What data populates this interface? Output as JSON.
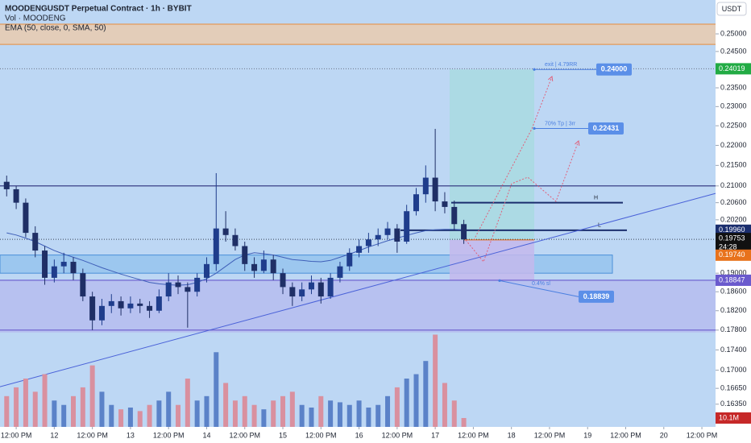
{
  "chart_data": {
    "type": "candlestick",
    "title": "MOODENGUSDT Perpetual Contract · 1h · BYBIT",
    "volume_title": "Vol · MOODENG",
    "indicator_title": "EMA (50, close, 0, SMA, 50)",
    "currency": "USDT",
    "log_scale": true,
    "background": "#bdd7f4",
    "ylim": [
      0.1593,
      0.2599
    ],
    "yticks": [
      {
        "value": 0.25,
        "label": "0.25000"
      },
      {
        "value": 0.245,
        "label": "0.24500"
      },
      {
        "value": 0.235,
        "label": "0.23500"
      },
      {
        "value": 0.23,
        "label": "0.23000"
      },
      {
        "value": 0.225,
        "label": "0.22500"
      },
      {
        "value": 0.22,
        "label": "0.22000"
      },
      {
        "value": 0.215,
        "label": "0.21500"
      },
      {
        "value": 0.21,
        "label": "0.21000"
      },
      {
        "value": 0.206,
        "label": "0.20600"
      },
      {
        "value": 0.202,
        "label": "0.20200"
      },
      {
        "value": 0.19,
        "label": "0.19000"
      },
      {
        "value": 0.186,
        "label": "0.18600"
      },
      {
        "value": 0.182,
        "label": "0.18200"
      },
      {
        "value": 0.178,
        "label": "0.17800"
      },
      {
        "value": 0.174,
        "label": "0.17400"
      },
      {
        "value": 0.17,
        "label": "0.17000"
      },
      {
        "value": 0.1665,
        "label": "0.16650"
      },
      {
        "value": 0.1635,
        "label": "0.16350"
      }
    ],
    "xlim": [
      -5.1,
      220.3
    ],
    "xticks": [
      {
        "value": 0,
        "label": "12:00 PM"
      },
      {
        "value": 12,
        "label": "12"
      },
      {
        "value": 24,
        "label": "12:00 PM"
      },
      {
        "value": 36,
        "label": "13"
      },
      {
        "value": 48,
        "label": "12:00 PM"
      },
      {
        "value": 60,
        "label": "14"
      },
      {
        "value": 72,
        "label": "12:00 PM"
      },
      {
        "value": 84,
        "label": "15"
      },
      {
        "value": 96,
        "label": "12:00 PM"
      },
      {
        "value": 108,
        "label": "16"
      },
      {
        "value": 120,
        "label": "12:00 PM"
      },
      {
        "value": 132,
        "label": "17"
      },
      {
        "value": 144,
        "label": "12:00 PM"
      },
      {
        "value": 156,
        "label": "18"
      },
      {
        "value": 168,
        "label": "12:00 PM"
      },
      {
        "value": 180,
        "label": "19"
      },
      {
        "value": 192,
        "label": "12:00 PM"
      },
      {
        "value": 204,
        "label": "20"
      },
      {
        "value": 216,
        "label": "12:00 PM"
      }
    ],
    "x": [
      -3,
      0,
      3,
      6,
      9,
      12,
      15,
      18,
      21,
      24,
      27,
      30,
      33,
      36,
      39,
      42,
      45,
      48,
      51,
      54,
      57,
      60,
      63,
      66,
      69,
      72,
      75,
      78,
      81,
      84,
      87,
      90,
      93,
      96,
      99,
      102,
      105,
      108,
      111,
      114,
      117,
      120,
      123,
      126,
      129,
      132,
      135,
      138,
      141
    ],
    "up_color": "#1f3d8c",
    "down_color": "#1f2f66",
    "candles": [
      [
        0.211,
        0.2125,
        0.2075,
        0.2092
      ],
      [
        0.2092,
        0.21,
        0.2045,
        0.206
      ],
      [
        0.206,
        0.207,
        0.198,
        0.199
      ],
      [
        0.199,
        0.2005,
        0.1935,
        0.195
      ],
      [
        0.195,
        0.196,
        0.1875,
        0.189
      ],
      [
        0.189,
        0.193,
        0.188,
        0.1915
      ],
      [
        0.1915,
        0.1945,
        0.19,
        0.1925
      ],
      [
        0.1925,
        0.1935,
        0.1885,
        0.19
      ],
      [
        0.19,
        0.191,
        0.184,
        0.185
      ],
      [
        0.185,
        0.186,
        0.178,
        0.18
      ],
      [
        0.18,
        0.1845,
        0.179,
        0.183
      ],
      [
        0.183,
        0.1855,
        0.1815,
        0.184
      ],
      [
        0.184,
        0.185,
        0.181,
        0.1825
      ],
      [
        0.1825,
        0.185,
        0.1815,
        0.1835
      ],
      [
        0.1835,
        0.1845,
        0.1815,
        0.183
      ],
      [
        0.183,
        0.184,
        0.1805,
        0.182
      ],
      [
        0.182,
        0.1865,
        0.1815,
        0.185
      ],
      [
        0.185,
        0.19,
        0.184,
        0.188
      ],
      [
        0.188,
        0.1895,
        0.1855,
        0.187
      ],
      [
        0.187,
        0.188,
        0.1785,
        0.186
      ],
      [
        0.186,
        0.19,
        0.185,
        0.189
      ],
      [
        0.189,
        0.1935,
        0.188,
        0.192
      ],
      [
        0.192,
        0.2131,
        0.1905,
        0.2
      ],
      [
        0.2,
        0.204,
        0.197,
        0.1985
      ],
      [
        0.1985,
        0.2,
        0.195,
        0.196
      ],
      [
        0.196,
        0.197,
        0.1905,
        0.192
      ],
      [
        0.192,
        0.1935,
        0.189,
        0.1905
      ],
      [
        0.1905,
        0.195,
        0.19,
        0.193
      ],
      [
        0.193,
        0.194,
        0.1885,
        0.19
      ],
      [
        0.19,
        0.191,
        0.1855,
        0.187
      ],
      [
        0.187,
        0.188,
        0.183,
        0.185
      ],
      [
        0.185,
        0.188,
        0.184,
        0.1865
      ],
      [
        0.1865,
        0.1895,
        0.1855,
        0.188
      ],
      [
        0.188,
        0.189,
        0.1835,
        0.185
      ],
      [
        0.185,
        0.19,
        0.1845,
        0.189
      ],
      [
        0.189,
        0.1925,
        0.188,
        0.1915
      ],
      [
        0.1915,
        0.1955,
        0.1905,
        0.1945
      ],
      [
        0.1945,
        0.1975,
        0.1935,
        0.196
      ],
      [
        0.196,
        0.199,
        0.1945,
        0.1975
      ],
      [
        0.1975,
        0.2,
        0.196,
        0.1985
      ],
      [
        0.1985,
        0.2015,
        0.1975,
        0.2
      ],
      [
        0.2,
        0.201,
        0.1945,
        0.197
      ],
      [
        0.197,
        0.2055,
        0.1965,
        0.204
      ],
      [
        0.204,
        0.2095,
        0.203,
        0.208
      ],
      [
        0.208,
        0.215,
        0.206,
        0.212
      ],
      [
        0.212,
        0.2242,
        0.204,
        0.2063
      ],
      [
        0.2063,
        0.2085,
        0.2035,
        0.205
      ],
      [
        0.205,
        0.2065,
        0.1995,
        0.201
      ],
      [
        0.201,
        0.202,
        0.1965,
        0.19753
      ]
    ],
    "ema_color": "#3f5fb8",
    "ema": [
      0.199,
      0.1985,
      0.1978,
      0.197,
      0.196,
      0.195,
      0.1942,
      0.1935,
      0.1928,
      0.192,
      0.1912,
      0.1905,
      0.1898,
      0.1892,
      0.1886,
      0.188,
      0.1877,
      0.1875,
      0.1874,
      0.1875,
      0.188,
      0.1888,
      0.19,
      0.1915,
      0.193,
      0.194,
      0.1945,
      0.1943,
      0.194,
      0.1935,
      0.193,
      0.1928,
      0.1926,
      0.1925,
      0.1928,
      0.1935,
      0.1942,
      0.195,
      0.1958,
      0.1965,
      0.1972,
      0.1978,
      0.1984,
      0.199,
      0.1995,
      0.1997,
      0.1998,
      0.1998,
      0.1997
    ],
    "volume_lim": [
      0,
      110
    ],
    "volume_up_color": "#5b82c8",
    "volume_down_color": "#d9909f",
    "volumes": [
      35,
      45,
      55,
      40,
      60,
      30,
      25,
      35,
      45,
      70,
      40,
      25,
      20,
      22,
      18,
      25,
      30,
      40,
      25,
      55,
      30,
      35,
      85,
      50,
      30,
      35,
      25,
      20,
      30,
      35,
      40,
      25,
      22,
      35,
      30,
      28,
      25,
      30,
      22,
      25,
      35,
      45,
      55,
      60,
      75,
      105,
      50,
      30,
      10.1
    ],
    "volume_label": {
      "value": 10.1,
      "label": "10.1M",
      "color": "#c62828"
    },
    "zones": [
      {
        "low": 0.247,
        "high": 0.2528,
        "color": "#f3c9a0"
      },
      {
        "low": 0.19,
        "high": 0.194,
        "color": "#8fc0ec"
      },
      {
        "low": 0.1775,
        "high": 0.18847,
        "color": "#b5b8ee"
      }
    ],
    "levels": [
      {
        "value": 0.2528,
        "color": "#e39a5a"
      },
      {
        "value": 0.247,
        "color": "#e39a5a"
      },
      {
        "value": 0.21,
        "color": "#2b2f7a"
      },
      {
        "value": 0.206,
        "color": "#1b2e6e",
        "label": "H"
      },
      {
        "value": 0.1996,
        "color": "#1b2e6e",
        "label": "L"
      },
      {
        "value": 0.1974,
        "color": "#e8721c"
      },
      {
        "value": 0.18847,
        "color": "#6a5acd"
      },
      {
        "value": 0.178,
        "color": "#6a5acd"
      }
    ],
    "trendline": {
      "start": 0.1668,
      "end": 0.2082,
      "color": "#4a62d8"
    },
    "position": {
      "target": 0.24,
      "entry": 0.1974,
      "stop": 0.1884,
      "target_color": "#a9dbe0",
      "stop_color": "#c4b8ec"
    },
    "annotations": [
      {
        "text": "exit | 4.79RR",
        "value": 0.24,
        "value_label": "0.24000"
      },
      {
        "text": "70% Tp | 3rr",
        "value": 0.22431,
        "value_label": "0.22431"
      },
      {
        "text": "0.4% sl",
        "value": 0.18839,
        "value_label": "0.18839"
      }
    ],
    "annotation_color": "#4a7fe0",
    "price_labels": [
      {
        "value": 0.24019,
        "label": "0.24019",
        "color": "#22ab44"
      },
      {
        "value": 0.1996,
        "label": "0.19960",
        "color": "#1b2e6e"
      },
      {
        "value": 0.19753,
        "label": "0.19753",
        "color": "#111111"
      },
      {
        "value": 0.1974,
        "label": "0.19740",
        "color": "#e8721c"
      },
      {
        "value": 0.18847,
        "label": "0.18847",
        "color": "#6a5acd"
      }
    ],
    "countdown": "24:28"
  }
}
